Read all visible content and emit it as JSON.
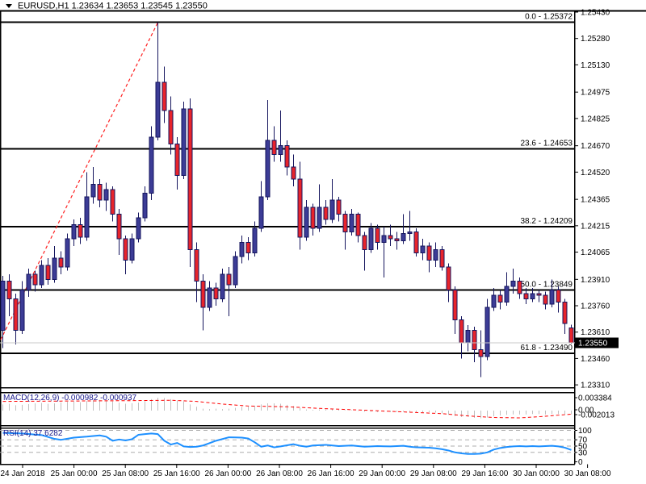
{
  "header": {
    "title": "EURUSD,H1 1.23634 1.23653 1.23545 1.23550",
    "symbol": "EURUSD,H1",
    "open": "1.23634",
    "high": "1.23653",
    "low": "1.23545",
    "close": "1.23550",
    "dropdown_icon": "symbol-dropdown-triangle"
  },
  "chart_data": {
    "type": "candlestick",
    "symbol": "EURUSD",
    "timeframe": "H1",
    "background": "#FFFFFF",
    "grid": "off",
    "colors": {
      "bull_body": "#3C3C96",
      "bear_body": "#E8242B",
      "candle_outline": "#15155E",
      "fib_line": "#000000",
      "trendline": "#FF2020",
      "macd_bar": "#BFBFBF",
      "macd_signal": "#FF0000",
      "rsi_line": "#1E90FF",
      "grid_dash": "#ADADAD",
      "current_price_line": "#C8C8C8",
      "price_tag_bg": "#000000",
      "price_tag_text": "#FFFFFF",
      "axis_text": "#000000",
      "indicator_label": "#1A1A8C"
    },
    "price_axis": {
      "ylim": [
        1.2331,
        1.2543
      ],
      "ticks": [
        "1.25430",
        "1.25280",
        "1.25130",
        "1.24975",
        "1.24825",
        "1.24670",
        "1.24520",
        "1.24365",
        "1.24215",
        "1.24065",
        "1.23910",
        "1.23760",
        "1.23610",
        "1.23460",
        "1.23310"
      ],
      "current_price": 1.2355,
      "current_price_label": "1.23550"
    },
    "time_axis": {
      "labels": [
        "24 Jan 2018",
        "25 Jan 00:00",
        "25 Jan 08:00",
        "25 Jan 16:00",
        "26 Jan 00:00",
        "26 Jan 08:00",
        "26 Jan 16:00",
        "29 Jan 00:00",
        "29 Jan 08:00",
        "29 Jan 16:00",
        "30 Jan 00:00",
        "30 Jan 08:00"
      ]
    },
    "fibonacci": [
      {
        "label": "0.0 - 1.25372",
        "level": "0.0",
        "price": 1.25372
      },
      {
        "label": "23.6 - 1.24653",
        "level": "23.6",
        "price": 1.24653
      },
      {
        "label": "38.2 - 1.24209",
        "level": "38.2",
        "price": 1.24209
      },
      {
        "label": "50.0 - 1.23849",
        "level": "50.0",
        "price": 1.23849
      },
      {
        "label": "61.8 - 1.23490",
        "level": "61.8",
        "price": 1.2349
      }
    ],
    "trendline": {
      "style": "dashed",
      "anchors_candle_price": [
        [
          -1.5,
          1.2348
        ],
        [
          24,
          1.25372
        ]
      ]
    },
    "candles": [
      [
        1.2362,
        1.2393,
        1.2352,
        1.239
      ],
      [
        1.239,
        1.2394,
        1.237,
        1.238
      ],
      [
        1.238,
        1.2383,
        1.2354,
        1.2362
      ],
      [
        1.2362,
        1.239,
        1.236,
        1.2385
      ],
      [
        1.2385,
        1.2397,
        1.2381,
        1.2394
      ],
      [
        1.2394,
        1.2396,
        1.2384,
        1.2388
      ],
      [
        1.2388,
        1.2402,
        1.2386,
        1.2399
      ],
      [
        1.2399,
        1.2403,
        1.2388,
        1.2391
      ],
      [
        1.2391,
        1.241,
        1.2389,
        1.2403
      ],
      [
        1.2403,
        1.2407,
        1.2394,
        1.2398
      ],
      [
        1.2398,
        1.2417,
        1.2396,
        1.2414
      ],
      [
        1.2414,
        1.2425,
        1.241,
        1.2422
      ],
      [
        1.2422,
        1.2426,
        1.2411,
        1.2415
      ],
      [
        1.2415,
        1.2452,
        1.2413,
        1.2438
      ],
      [
        1.2438,
        1.2455,
        1.2434,
        1.2445
      ],
      [
        1.2445,
        1.2448,
        1.2432,
        1.2436
      ],
      [
        1.2436,
        1.2446,
        1.243,
        1.2442
      ],
      [
        1.2442,
        1.2444,
        1.2424,
        1.2428
      ],
      [
        1.2428,
        1.2431,
        1.2405,
        1.2414
      ],
      [
        1.2414,
        1.2416,
        1.2394,
        1.2402
      ],
      [
        1.2402,
        1.2417,
        1.24,
        1.2414
      ],
      [
        1.2414,
        1.2429,
        1.2412,
        1.2426
      ],
      [
        1.2426,
        1.2444,
        1.2424,
        1.244
      ],
      [
        1.244,
        1.2478,
        1.2436,
        1.2472
      ],
      [
        1.2472,
        1.25372,
        1.247,
        1.2503
      ],
      [
        1.2503,
        1.2512,
        1.248,
        1.2487
      ],
      [
        1.2487,
        1.2495,
        1.2462,
        1.2468
      ],
      [
        1.2468,
        1.2472,
        1.2442,
        1.245
      ],
      [
        1.245,
        1.2492,
        1.2448,
        1.2488
      ],
      [
        1.2488,
        1.2494,
        1.2398,
        1.2408
      ],
      [
        1.2408,
        1.2412,
        1.2378,
        1.239
      ],
      [
        1.239,
        1.2394,
        1.2362,
        1.2375
      ],
      [
        1.2375,
        1.239,
        1.2373,
        1.2386
      ],
      [
        1.2386,
        1.2389,
        1.2376,
        1.238
      ],
      [
        1.238,
        1.2397,
        1.2378,
        1.2394
      ],
      [
        1.2394,
        1.2398,
        1.237,
        1.2388
      ],
      [
        1.2388,
        1.2407,
        1.2386,
        1.2404
      ],
      [
        1.2404,
        1.2416,
        1.24,
        1.2412
      ],
      [
        1.2412,
        1.2415,
        1.2402,
        1.2406
      ],
      [
        1.2406,
        1.2424,
        1.2404,
        1.242
      ],
      [
        1.242,
        1.2447,
        1.2418,
        1.2438
      ],
      [
        1.2438,
        1.2493,
        1.2436,
        1.247
      ],
      [
        1.247,
        1.2478,
        1.2458,
        1.2462
      ],
      [
        1.2462,
        1.2487,
        1.2458,
        1.2467
      ],
      [
        1.2467,
        1.247,
        1.245,
        1.2455
      ],
      [
        1.2455,
        1.2462,
        1.2444,
        1.2448
      ],
      [
        1.2448,
        1.2458,
        1.2408,
        1.2415
      ],
      [
        1.2415,
        1.2436,
        1.2413,
        1.2432
      ],
      [
        1.2432,
        1.2434,
        1.2416,
        1.242
      ],
      [
        1.242,
        1.2445,
        1.2418,
        1.2432
      ],
      [
        1.2432,
        1.2436,
        1.2422,
        1.2425
      ],
      [
        1.2425,
        1.2448,
        1.2423,
        1.2436
      ],
      [
        1.2436,
        1.2438,
        1.2424,
        1.2428
      ],
      [
        1.2428,
        1.243,
        1.2408,
        1.2418
      ],
      [
        1.2418,
        1.2431,
        1.2416,
        1.2428
      ],
      [
        1.2428,
        1.2429,
        1.2412,
        1.2416
      ],
      [
        1.2416,
        1.2418,
        1.2396,
        1.2408
      ],
      [
        1.2408,
        1.2423,
        1.2406,
        1.242
      ],
      [
        1.242,
        1.2422,
        1.2408,
        1.2412
      ],
      [
        1.2412,
        1.2421,
        1.2392,
        1.2416
      ],
      [
        1.2416,
        1.2422,
        1.241,
        1.2414
      ],
      [
        1.2414,
        1.2418,
        1.2408,
        1.2413
      ],
      [
        1.2413,
        1.2428,
        1.2411,
        1.2417
      ],
      [
        1.2417,
        1.243,
        1.2413,
        1.2418
      ],
      [
        1.2418,
        1.242,
        1.2404,
        1.2406
      ],
      [
        1.2406,
        1.2414,
        1.2402,
        1.241
      ],
      [
        1.241,
        1.2412,
        1.2395,
        1.2402
      ],
      [
        1.2402,
        1.2412,
        1.2398,
        1.2408
      ],
      [
        1.2408,
        1.241,
        1.2396,
        1.2398
      ],
      [
        1.2398,
        1.24,
        1.2378,
        1.2385
      ],
      [
        1.2385,
        1.2387,
        1.236,
        1.2368
      ],
      [
        1.2368,
        1.237,
        1.2346,
        1.2355
      ],
      [
        1.2355,
        1.2365,
        1.235,
        1.2362
      ],
      [
        1.2362,
        1.2364,
        1.2344,
        1.2351
      ],
      [
        1.2351,
        1.2362,
        1.23355,
        1.2347
      ],
      [
        1.2347,
        1.238,
        1.2345,
        1.2375
      ],
      [
        1.2375,
        1.2386,
        1.2373,
        1.2382
      ],
      [
        1.2382,
        1.2385,
        1.2374,
        1.2378
      ],
      [
        1.2378,
        1.2395,
        1.2376,
        1.2387
      ],
      [
        1.2387,
        1.2397,
        1.2383,
        1.239
      ],
      [
        1.239,
        1.2392,
        1.238,
        1.2383
      ],
      [
        1.2383,
        1.2386,
        1.2377,
        1.238
      ],
      [
        1.238,
        1.2386,
        1.2378,
        1.2383
      ],
      [
        1.2383,
        1.2385,
        1.2378,
        1.2382
      ],
      [
        1.2382,
        1.2384,
        1.2374,
        1.2377
      ],
      [
        1.2377,
        1.2391,
        1.2375,
        1.2385
      ],
      [
        1.2385,
        1.2387,
        1.2372,
        1.2378
      ],
      [
        1.2378,
        1.238,
        1.236,
        1.2366
      ],
      [
        1.23634,
        1.23653,
        1.23545,
        1.2355
      ]
    ],
    "macd": {
      "label_text": "MACD(12,26,9) -0.000982 -0.000937",
      "name": "MACD(12,26,9)",
      "main_value": "-0.000982",
      "signal_value": "-0.000937",
      "scale": {
        "max": 0.003384,
        "min": -0.002013,
        "labels": [
          "0.003384",
          "0.00",
          "-0.002013"
        ]
      },
      "histogram": [
        0.0016,
        0.0018,
        0.0014,
        0.0015,
        0.0017,
        0.0019,
        0.002,
        0.0018,
        0.0019,
        0.0021,
        0.0023,
        0.0024,
        0.0022,
        0.0025,
        0.0027,
        0.0028,
        0.0026,
        0.0024,
        0.0021,
        0.0018,
        0.0019,
        0.0021,
        0.0025,
        0.003,
        0.003384,
        0.0033,
        0.003,
        0.0026,
        0.0024,
        0.0016,
        0.001,
        0.0005,
        0.0004,
        0.0005,
        0.0004,
        0.0005,
        0.0007,
        0.001,
        0.0011,
        0.0013,
        0.0016,
        0.0019,
        0.0019,
        0.0018,
        0.0015,
        0.0012,
        0.0007,
        0.0003,
        0.0002,
        0.0003,
        0.0003,
        0.0004,
        0.0002,
        0.0001,
        0.0001,
        -0.0001,
        -0.0003,
        -0.0003,
        -0.0004,
        -0.0003,
        -0.0004,
        -0.0004,
        -0.0003,
        -0.0004,
        -0.0004,
        -0.0005,
        -0.0004,
        -0.0005,
        -0.0008,
        -0.0011,
        -0.0014,
        -0.0017,
        -0.0016,
        -0.0019,
        -0.002013,
        -0.0018,
        -0.0015,
        -0.0013,
        -0.0011,
        -0.001,
        -0.001,
        -0.001,
        -0.0009,
        -0.0009,
        -0.001,
        -0.0009,
        -0.0009,
        -0.001,
        -0.000982
      ],
      "signal_points": [
        [
          0,
          0.0024
        ],
        [
          10,
          0.0025
        ],
        [
          20,
          0.0026
        ],
        [
          26,
          0.0027
        ],
        [
          30,
          0.0024
        ],
        [
          34,
          0.0017
        ],
        [
          38,
          0.0012
        ],
        [
          44,
          0.001
        ],
        [
          50,
          0.0005
        ],
        [
          56,
          0.0001
        ],
        [
          60,
          -0.0002
        ],
        [
          64,
          -0.0005
        ],
        [
          68,
          -0.0008
        ],
        [
          72,
          -0.0014
        ],
        [
          76,
          -0.0018
        ],
        [
          80,
          -0.0019
        ],
        [
          83,
          -0.0016
        ],
        [
          86,
          -0.0012
        ],
        [
          88,
          -0.000937
        ]
      ]
    },
    "rsi": {
      "label_text": "RSI(14) 37.6282",
      "name": "RSI(14)",
      "value": "37.6282",
      "scale_labels": [
        "100",
        "70",
        "50",
        "30",
        "0"
      ],
      "scale_values": [
        100,
        70,
        50,
        30,
        0
      ],
      "gridline_levels": [
        100,
        70,
        50,
        30
      ],
      "points": [
        [
          0,
          92
        ],
        [
          3,
          90
        ],
        [
          6,
          85
        ],
        [
          8,
          73
        ],
        [
          9,
          70
        ],
        [
          11,
          77
        ],
        [
          13,
          80
        ],
        [
          15,
          84
        ],
        [
          16,
          80
        ],
        [
          17,
          67
        ],
        [
          18,
          71
        ],
        [
          19,
          68
        ],
        [
          20,
          72
        ],
        [
          21,
          86
        ],
        [
          23,
          90
        ],
        [
          24,
          88
        ],
        [
          25,
          67
        ],
        [
          26,
          55
        ],
        [
          27,
          60
        ],
        [
          28,
          49
        ],
        [
          29,
          47
        ],
        [
          30,
          48
        ],
        [
          31,
          52
        ],
        [
          33,
          67
        ],
        [
          35,
          78
        ],
        [
          37,
          77
        ],
        [
          38,
          74
        ],
        [
          39,
          62
        ],
        [
          40,
          48
        ],
        [
          41,
          52
        ],
        [
          42,
          46
        ],
        [
          43,
          49
        ],
        [
          45,
          56
        ],
        [
          46,
          51
        ],
        [
          47,
          48
        ],
        [
          48,
          52
        ],
        [
          50,
          54
        ],
        [
          52,
          50
        ],
        [
          54,
          52
        ],
        [
          56,
          48
        ],
        [
          58,
          50
        ],
        [
          60,
          49
        ],
        [
          62,
          51
        ],
        [
          63,
          48
        ],
        [
          64,
          46
        ],
        [
          66,
          45
        ],
        [
          67,
          43
        ],
        [
          68,
          40
        ],
        [
          69,
          36
        ],
        [
          70,
          30
        ],
        [
          71,
          27
        ],
        [
          72,
          25
        ],
        [
          73,
          25
        ],
        [
          74,
          26
        ],
        [
          75,
          30
        ],
        [
          76,
          39
        ],
        [
          77,
          44
        ],
        [
          78,
          47
        ],
        [
          79,
          49
        ],
        [
          80,
          50
        ],
        [
          81,
          49
        ],
        [
          82,
          50
        ],
        [
          83,
          49
        ],
        [
          84,
          50
        ],
        [
          85,
          51
        ],
        [
          86,
          49
        ],
        [
          87,
          45
        ],
        [
          88,
          37.6
        ]
      ]
    }
  }
}
